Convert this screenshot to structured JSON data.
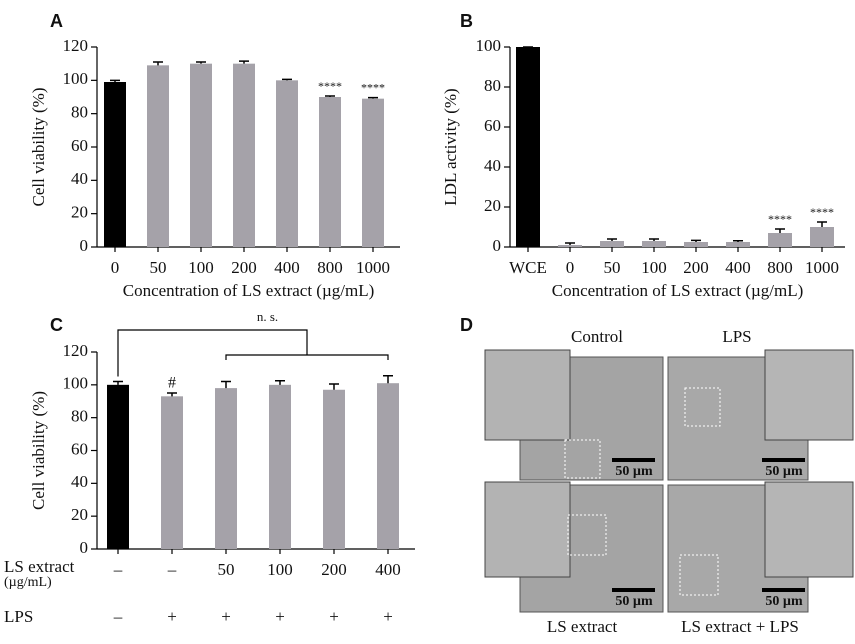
{
  "chart_data": [
    {
      "type": "bar",
      "panel": "A",
      "ylabel": "Cell viability (%)",
      "xlabel": "Concentration of LS extract (µg/mL)",
      "categories": [
        "0",
        "50",
        "100",
        "200",
        "400",
        "800",
        "1000"
      ],
      "values": [
        99,
        109,
        110,
        110,
        100,
        90,
        89
      ],
      "errors": [
        1,
        2,
        1,
        1.5,
        0.6,
        0.6,
        0.6
      ],
      "colors": [
        "#000000",
        "#a5a2a9",
        "#a5a2a9",
        "#a5a2a9",
        "#a5a2a9",
        "#a5a2a9",
        "#a5a2a9"
      ],
      "value_annotations": [
        null,
        null,
        null,
        null,
        null,
        "****",
        "****"
      ],
      "ylim": [
        0,
        120
      ],
      "yticks": [
        0,
        20,
        40,
        60,
        80,
        100,
        120
      ]
    },
    {
      "type": "bar",
      "panel": "B",
      "ylabel": "LDL activity (%)",
      "xlabel": "Concentration of LS extract (µg/mL)",
      "categories": [
        "WCE",
        "0",
        "50",
        "100",
        "200",
        "400",
        "800",
        "1000"
      ],
      "values": [
        100,
        1,
        3,
        3,
        2.5,
        2.5,
        7,
        10
      ],
      "errors": [
        0,
        1,
        1,
        1,
        0.8,
        0.6,
        2,
        2.5
      ],
      "colors": [
        "#000000",
        "#a5a2a9",
        "#a5a2a9",
        "#a5a2a9",
        "#a5a2a9",
        "#a5a2a9",
        "#a5a2a9",
        "#a5a2a9"
      ],
      "value_annotations": [
        null,
        null,
        null,
        null,
        null,
        null,
        "****",
        "****"
      ],
      "ylim": [
        0,
        100
      ],
      "yticks": [
        0,
        20,
        40,
        60,
        80,
        100
      ]
    },
    {
      "type": "bar",
      "panel": "C",
      "ylabel": "Cell viability (%)",
      "category_label": [
        "LS extract",
        "(µg/mL)"
      ],
      "categories": [
        "–",
        "–",
        "50",
        "100",
        "200",
        "400"
      ],
      "lps_label": "LPS",
      "lps": [
        "–",
        "+",
        "+",
        "+",
        "+",
        "+"
      ],
      "values": [
        100,
        93,
        98,
        100,
        97,
        101
      ],
      "errors": [
        2,
        2,
        4,
        2.5,
        3.5,
        4.5
      ],
      "colors": [
        "#000000",
        "#a5a2a9",
        "#a5a2a9",
        "#a5a2a9",
        "#a5a2a9",
        "#a5a2a9"
      ],
      "value_annotations": [
        null,
        "#",
        null,
        null,
        null,
        null
      ],
      "bracket_label": "n. s.",
      "ylim": [
        0,
        120
      ],
      "yticks": [
        0,
        20,
        40,
        60,
        80,
        100,
        120
      ]
    }
  ],
  "panel_d": {
    "panel": "D",
    "titles": [
      "Control",
      "LPS",
      "LS  extract",
      "LS extract + LPS"
    ],
    "scale_bar": "50 µm"
  }
}
